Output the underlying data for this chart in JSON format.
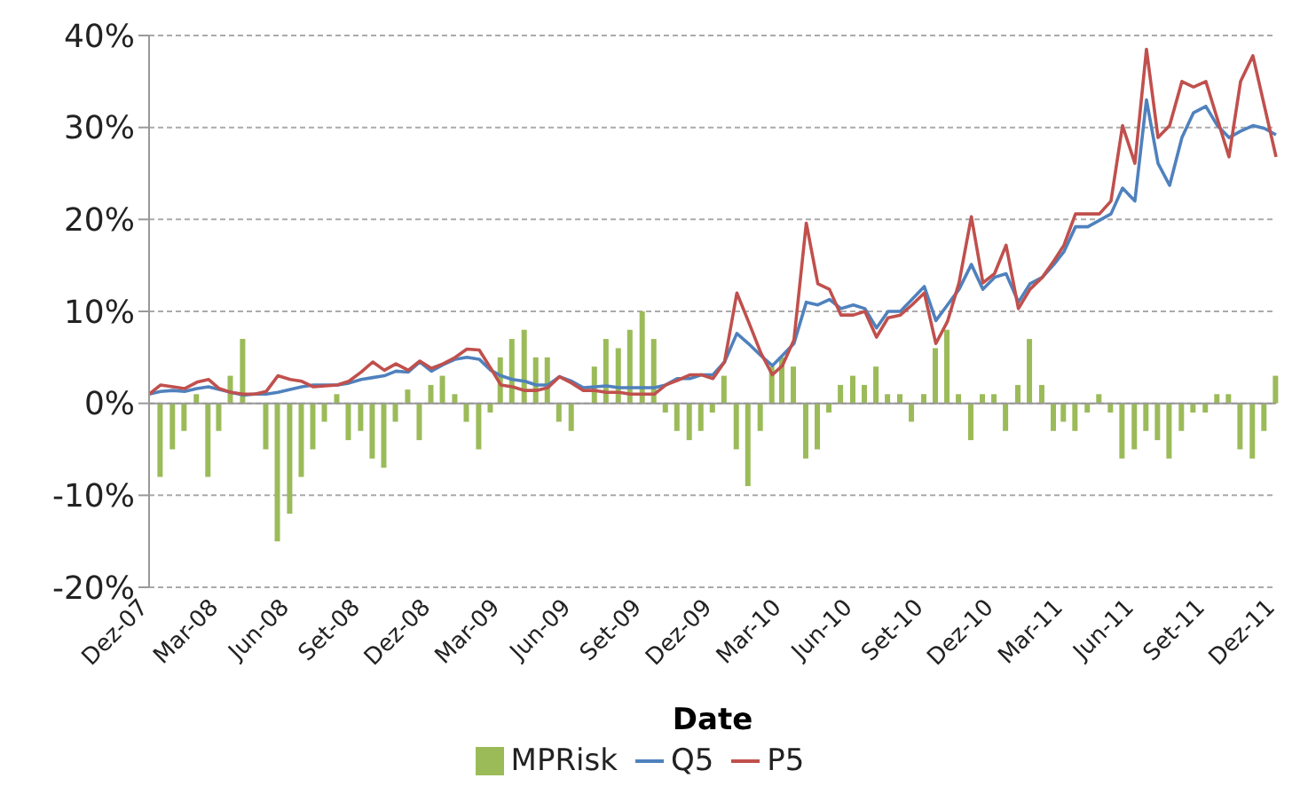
{
  "chart_data": {
    "type": "line",
    "xlabel": "Date",
    "x": [
      "2007-12-01",
      "2007-12-16",
      "2008-01-01",
      "2008-01-16",
      "2008-02-01",
      "2008-02-16",
      "2008-03-01",
      "2008-03-16",
      "2008-04-01",
      "2008-04-16",
      "2008-05-01",
      "2008-05-16",
      "2008-06-01",
      "2008-06-16",
      "2008-07-01",
      "2008-07-16",
      "2008-08-01",
      "2008-08-16",
      "2008-09-01",
      "2008-09-16",
      "2008-10-01",
      "2008-10-16",
      "2008-11-01",
      "2008-11-16",
      "2008-12-01",
      "2008-12-16",
      "2009-01-01",
      "2009-01-16",
      "2009-02-01",
      "2009-02-16",
      "2009-03-01",
      "2009-03-16",
      "2009-04-01",
      "2009-04-16",
      "2009-05-01",
      "2009-05-16",
      "2009-06-01",
      "2009-06-16",
      "2009-07-01",
      "2009-07-16",
      "2009-08-01",
      "2009-08-16",
      "2009-09-01",
      "2009-09-16",
      "2009-10-01",
      "2009-10-16",
      "2009-11-01",
      "2009-11-16",
      "2009-12-01",
      "2009-12-16",
      "2010-01-01",
      "2010-01-16",
      "2010-02-01",
      "2010-02-16",
      "2010-03-01",
      "2010-03-16",
      "2010-04-01",
      "2010-04-16",
      "2010-05-01",
      "2010-05-16",
      "2010-06-01",
      "2010-06-16",
      "2010-07-01",
      "2010-07-16",
      "2010-08-01",
      "2010-08-16",
      "2010-09-01",
      "2010-09-16",
      "2010-10-01",
      "2010-10-16",
      "2010-11-01",
      "2010-11-16",
      "2010-12-01",
      "2010-12-16",
      "2011-01-01",
      "2011-01-16",
      "2011-02-01",
      "2011-02-16",
      "2011-03-01",
      "2011-03-16",
      "2011-04-01",
      "2011-04-16",
      "2011-05-01",
      "2011-05-16",
      "2011-06-01",
      "2011-06-16",
      "2011-07-01",
      "2011-07-16",
      "2011-08-01",
      "2011-08-16",
      "2011-09-01",
      "2011-09-16",
      "2011-10-01",
      "2011-10-16",
      "2011-11-01",
      "2011-11-16",
      "2011-12-01"
    ],
    "series": [
      {
        "name": "MPRisk",
        "type": "bar",
        "color": "#9bbb59",
        "values": [
          0,
          -8,
          -5,
          -3,
          1,
          -8,
          -3,
          3,
          7,
          0,
          -5,
          -15,
          -12,
          -8,
          -5,
          -2,
          1,
          -4,
          -3,
          -6,
          -7,
          -2,
          1.5,
          -4,
          2,
          3,
          1,
          -2,
          -5,
          -1,
          5,
          7,
          8,
          5,
          5,
          -2,
          -3,
          0,
          4,
          7,
          6,
          8,
          10,
          7,
          -1,
          -3,
          -4,
          -3,
          -1,
          3,
          -5,
          -9,
          -3,
          4,
          5,
          4,
          -6,
          -5,
          -1,
          2,
          3,
          2,
          4,
          1,
          1,
          -2,
          1,
          6,
          8,
          1,
          -4,
          1,
          1,
          -3,
          2,
          7,
          2,
          -3,
          -2,
          -3,
          -1,
          1,
          -1,
          -6,
          -5,
          -3,
          -4,
          -6,
          -3,
          -1,
          -1,
          1,
          1,
          -5,
          -6,
          -3,
          3
        ]
      },
      {
        "name": "Q5",
        "color": "#4f81bd",
        "values": [
          1.0,
          1.3,
          1.4,
          1.3,
          1.6,
          1.8,
          1.5,
          1.2,
          0.9,
          1.0,
          1.0,
          1.2,
          1.5,
          1.8,
          2.0,
          2.0,
          2.0,
          2.2,
          2.6,
          2.8,
          3.0,
          3.5,
          3.4,
          4.5,
          3.5,
          4.2,
          4.8,
          5.0,
          4.8,
          3.6,
          3.0,
          2.6,
          2.4,
          2.0,
          2.0,
          2.9,
          2.4,
          1.7,
          1.8,
          1.9,
          1.7,
          1.7,
          1.7,
          1.7,
          2.0,
          2.7,
          2.7,
          3.1,
          3.1,
          4.5,
          7.6,
          6.5,
          5.2,
          4.1,
          5.2,
          6.5,
          11.0,
          10.7,
          11.3,
          10.3,
          10.7,
          10.3,
          8.2,
          10.0,
          10.0,
          11.3,
          12.7,
          9.0,
          10.7,
          12.4,
          15.1,
          12.4,
          13.7,
          14.1,
          11.0,
          13.0,
          13.7,
          15.1,
          16.5,
          19.2,
          19.2,
          19.9,
          20.6,
          23.4,
          22.0,
          33.0,
          26.1,
          23.7,
          28.9,
          31.6,
          32.3,
          30.2,
          28.9,
          29.6,
          30.2,
          29.9,
          29.2
        ]
      },
      {
        "name": "P5",
        "color": "#c0504d",
        "values": [
          1.0,
          2.0,
          1.8,
          1.6,
          2.3,
          2.6,
          1.6,
          1.2,
          1.0,
          1.0,
          1.3,
          3.0,
          2.6,
          2.4,
          1.8,
          1.9,
          2.0,
          2.4,
          3.4,
          4.5,
          3.6,
          4.3,
          3.6,
          4.6,
          3.8,
          4.3,
          5.0,
          5.9,
          5.8,
          3.8,
          2.0,
          1.8,
          1.4,
          1.4,
          1.7,
          2.9,
          2.2,
          1.4,
          1.4,
          1.2,
          1.2,
          1.0,
          1.0,
          1.0,
          2.0,
          2.5,
          3.1,
          3.1,
          2.7,
          4.5,
          12.0,
          8.9,
          5.5,
          3.1,
          4.1,
          6.9,
          19.6,
          13.0,
          12.4,
          9.6,
          9.6,
          10.0,
          7.2,
          9.3,
          9.6,
          10.7,
          12.0,
          6.5,
          8.9,
          13.1,
          20.3,
          13.1,
          14.1,
          17.2,
          10.3,
          12.4,
          13.7,
          15.5,
          17.2,
          20.6,
          20.6,
          20.6,
          22.0,
          30.2,
          26.1,
          38.5,
          28.9,
          30.2,
          35.0,
          34.4,
          35.0,
          30.9,
          26.8,
          35.0,
          37.8,
          32.3,
          26.8
        ]
      }
    ],
    "ylim": [
      -20,
      40
    ],
    "yticks": [
      {
        "value": -20,
        "label": "-20%"
      },
      {
        "value": -10,
        "label": "-10%"
      },
      {
        "value": 0,
        "label": "0%"
      },
      {
        "value": 10,
        "label": "10%"
      },
      {
        "value": 20,
        "label": "20%"
      },
      {
        "value": 30,
        "label": "30%"
      },
      {
        "value": 40,
        "label": "40%"
      }
    ],
    "xlim": [
      "2007-12-01",
      "2011-12-01"
    ],
    "xticks": [
      {
        "value": "2007-12-01",
        "label": "Dez-07"
      },
      {
        "value": "2008-03-01",
        "label": "Mar-08"
      },
      {
        "value": "2008-06-01",
        "label": "Jun-08"
      },
      {
        "value": "2008-09-01",
        "label": "Set-08"
      },
      {
        "value": "2008-12-01",
        "label": "Dez-08"
      },
      {
        "value": "2009-03-01",
        "label": "Mar-09"
      },
      {
        "value": "2009-06-01",
        "label": "Jun-09"
      },
      {
        "value": "2009-09-01",
        "label": "Set-09"
      },
      {
        "value": "2009-12-01",
        "label": "Dez-09"
      },
      {
        "value": "2010-03-01",
        "label": "Mar-10"
      },
      {
        "value": "2010-06-01",
        "label": "Jun-10"
      },
      {
        "value": "2010-09-01",
        "label": "Set-10"
      },
      {
        "value": "2010-12-01",
        "label": "Dez-10"
      },
      {
        "value": "2011-03-01",
        "label": "Mar-11"
      },
      {
        "value": "2011-06-01",
        "label": "Jun-11"
      },
      {
        "value": "2011-09-01",
        "label": "Set-11"
      },
      {
        "value": "2011-12-01",
        "label": "Dez-11"
      }
    ],
    "grid": "y",
    "legend": "bottom",
    "line_style": "solid",
    "marker": "none"
  }
}
